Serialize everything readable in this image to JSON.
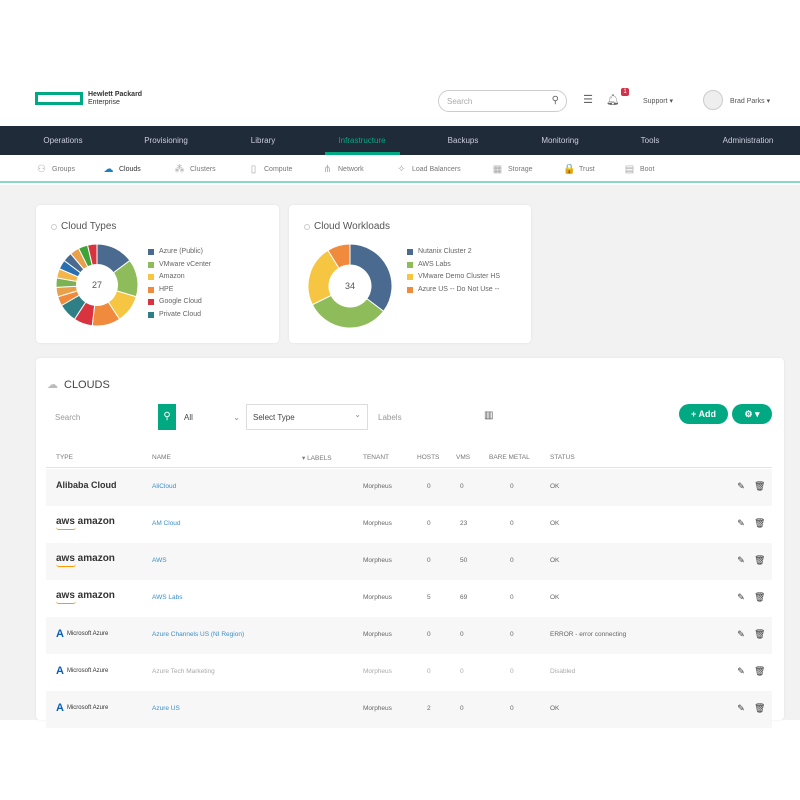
{
  "header": {
    "brand_line1": "Hewlett Packard",
    "brand_line2": "Enterprise",
    "search_placeholder": "Search",
    "notification_count": "1",
    "support_label": "Support ▾",
    "user_label": "Brad Parks ▾"
  },
  "nav": {
    "items": [
      "Operations",
      "Provisioning",
      "Library",
      "Infrastructure",
      "Backups",
      "Monitoring",
      "Tools",
      "Administration"
    ],
    "active": "Infrastructure"
  },
  "subnav": {
    "items": [
      {
        "label": "Groups",
        "icon": "⚇"
      },
      {
        "label": "Clouds",
        "icon": "☁"
      },
      {
        "label": "Clusters",
        "icon": "⁂"
      },
      {
        "label": "Compute",
        "icon": "▯"
      },
      {
        "label": "Network",
        "icon": "⋔"
      },
      {
        "label": "Load Balancers",
        "icon": "✧"
      },
      {
        "label": "Storage",
        "icon": "▦"
      },
      {
        "label": "Trust",
        "icon": "🔒"
      },
      {
        "label": "Boot",
        "icon": "▤"
      }
    ],
    "active": "Clouds"
  },
  "chart_data": [
    {
      "type": "pie",
      "title": "Cloud Types",
      "center_label": "27",
      "legend": [
        "Azure (Public)",
        "VMware vCenter",
        "Amazon",
        "HPE",
        "Google Cloud",
        "Private Cloud"
      ],
      "slices": [
        {
          "name": "Azure (Public)",
          "value": 4,
          "color": "#4a6a8f"
        },
        {
          "name": "VMware vCenter",
          "value": 4,
          "color": "#8fbc5a"
        },
        {
          "name": "Amazon",
          "value": 3,
          "color": "#f6c643"
        },
        {
          "name": "HPE",
          "value": 3,
          "color": "#f08a3c"
        },
        {
          "name": "Google Cloud",
          "value": 2,
          "color": "#d9333f"
        },
        {
          "name": "Private Cloud",
          "value": 2,
          "color": "#2f7f86"
        },
        {
          "value": 1,
          "color": "#f08a3c"
        },
        {
          "value": 1,
          "color": "#e8a04a"
        },
        {
          "value": 1,
          "color": "#7bb354"
        },
        {
          "value": 1,
          "color": "#f2b64a"
        },
        {
          "value": 1,
          "color": "#2a6fb0"
        },
        {
          "value": 1,
          "color": "#4a6a8f"
        },
        {
          "value": 1,
          "color": "#e8a04a"
        },
        {
          "value": 1,
          "color": "#3fa33a"
        },
        {
          "value": 1,
          "color": "#d9333f"
        }
      ]
    },
    {
      "type": "pie",
      "title": "Cloud Workloads",
      "center_label": "34",
      "legend": [
        "Nutanix Cluster 2",
        "AWS Labs",
        "VMware Demo Cluster HS",
        "Azure US -- Do Not Use --"
      ],
      "slices": [
        {
          "name": "Nutanix Cluster 2",
          "value": 12,
          "color": "#4a6a8f"
        },
        {
          "name": "AWS Labs",
          "value": 11,
          "color": "#8fbc5a"
        },
        {
          "name": "VMware Demo Cluster HS",
          "value": 8,
          "color": "#f6c643"
        },
        {
          "name": "Azure US -- Do Not Use --",
          "value": 3,
          "color": "#f08a3c"
        }
      ]
    }
  ],
  "clouds": {
    "title": "CLOUDS",
    "search_placeholder": "Search",
    "filter_value": "All",
    "type_select": "Select Type",
    "labels_placeholder": "Labels",
    "add_label": "+ Add",
    "settings_label": "⚙ ▾",
    "columns": [
      "Type",
      "Name",
      "▾ Labels",
      "Tenant",
      "Hosts",
      "VMs",
      "Bare Metal",
      "Status"
    ],
    "rows": [
      {
        "type": "Alibaba Cloud",
        "name": "AliCloud",
        "tenant": "Morpheus",
        "hosts": "0",
        "vms": "0",
        "bare_metal": "0",
        "status": "OK"
      },
      {
        "type": "aws amazon",
        "name": "AM Cloud",
        "tenant": "Morpheus",
        "hosts": "0",
        "vms": "23",
        "bare_metal": "0",
        "status": "OK"
      },
      {
        "type": "aws amazon",
        "name": "AWS",
        "tenant": "Morpheus",
        "hosts": "0",
        "vms": "50",
        "bare_metal": "0",
        "status": "OK"
      },
      {
        "type": "aws amazon",
        "name": "AWS Labs",
        "tenant": "Morpheus",
        "hosts": "5",
        "vms": "69",
        "bare_metal": "0",
        "status": "OK"
      },
      {
        "type": "Microsoft Azure",
        "name": "Azure Channels US (NI Region)",
        "tenant": "Morpheus",
        "hosts": "0",
        "vms": "0",
        "bare_metal": "0",
        "status": "ERROR - error connecting"
      },
      {
        "type": "Microsoft Azure",
        "name": "Azure Tech Marketing",
        "tenant": "Morpheus",
        "hosts": "0",
        "vms": "0",
        "bare_metal": "0",
        "status": "Disabled"
      },
      {
        "type": "Microsoft Azure",
        "name": "Azure US",
        "tenant": "Morpheus",
        "hosts": "2",
        "vms": "0",
        "bare_metal": "0",
        "status": "OK"
      }
    ]
  }
}
